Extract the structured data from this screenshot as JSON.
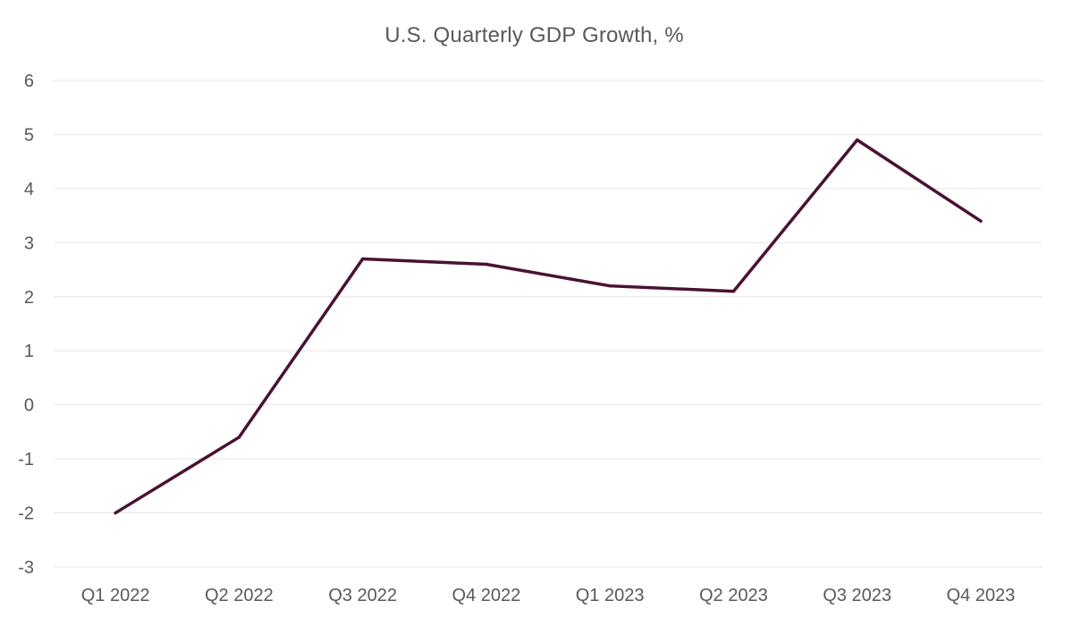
{
  "chart_data": {
    "type": "line",
    "title": "U.S. Quarterly GDP Growth, %",
    "xlabel": "",
    "ylabel": "",
    "categories": [
      "Q1 2022",
      "Q2 2022",
      "Q3 2022",
      "Q4 2022",
      "Q1 2023",
      "Q2 2023",
      "Q3 2023",
      "Q4 2023"
    ],
    "series": [
      {
        "values": [
          -2.0,
          -0.6,
          2.7,
          2.6,
          2.2,
          2.1,
          4.9,
          3.4
        ],
        "color": "#4a1232"
      }
    ],
    "ylim": [
      -3,
      6
    ],
    "yticks": [
      "6",
      "5",
      "4",
      "3",
      "2",
      "1",
      "0",
      "-1",
      "-2",
      "-3"
    ],
    "grid": true,
    "legend": "none"
  }
}
